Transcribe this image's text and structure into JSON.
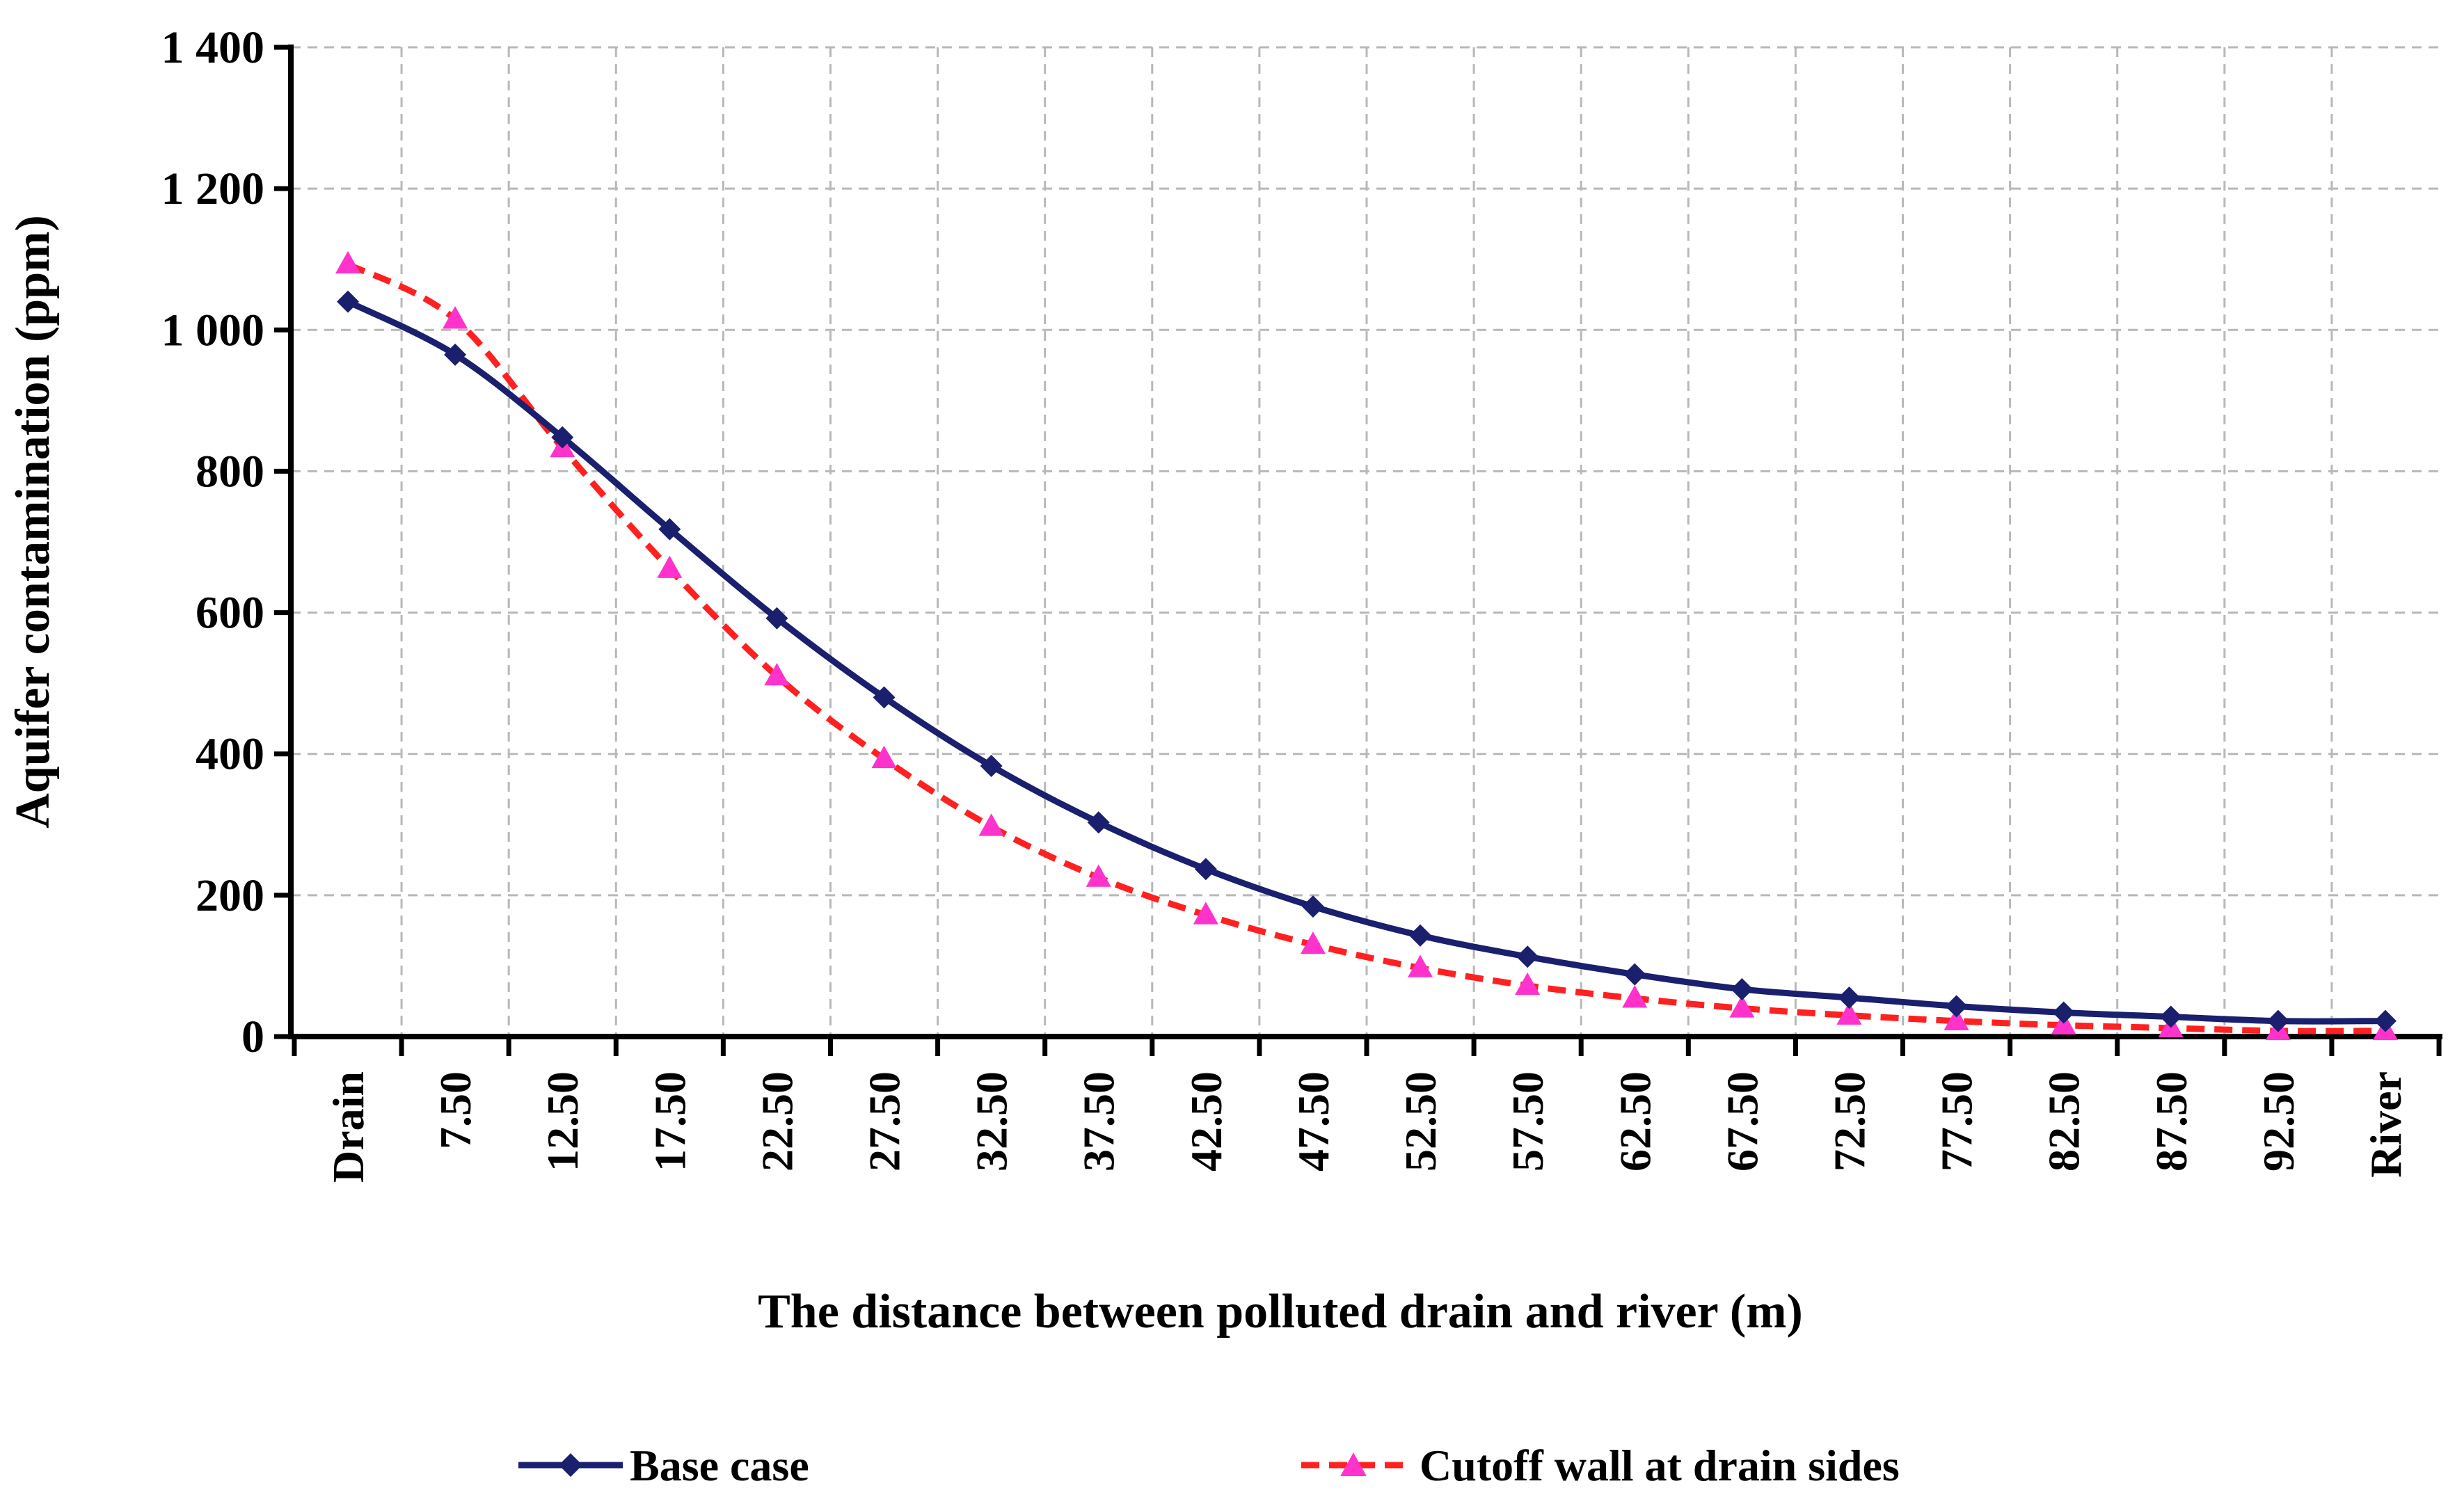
{
  "chart_data": {
    "type": "line",
    "title": "",
    "xlabel": "The distance between polluted  drain  and  river (m)",
    "ylabel": "Aquifer  contamination  (ppm)",
    "ylim": [
      0,
      1400
    ],
    "yticks": [
      0,
      200,
      400,
      600,
      800,
      1000,
      1200,
      1400
    ],
    "ytick_labels": [
      "0",
      "200",
      "400",
      "600",
      "800",
      "1 000",
      "1 200",
      "1 400"
    ],
    "categories": [
      "Drain",
      "7.50",
      "12.50",
      "17.50",
      "22.50",
      "27.50",
      "32.50",
      "37.50",
      "42.50",
      "47.50",
      "52.50",
      "57.50",
      "62.50",
      "67.50",
      "72.50",
      "77.50",
      "82.50",
      "87.50",
      "92.50",
      "River"
    ],
    "grid": true,
    "legend_position": "bottom",
    "series": [
      {
        "name": "Base case",
        "color": "#1a1f6e",
        "marker": "diamond",
        "line_style": "solid",
        "values": [
          1040,
          965,
          848,
          718,
          592,
          480,
          383,
          303,
          237,
          184,
          143,
          113,
          88,
          67,
          55,
          43,
          34,
          28,
          22,
          22
        ]
      },
      {
        "name": "Cutoff wall at drain sides",
        "color": "#ff2020",
        "marker_color": "#ff33cc",
        "marker": "triangle",
        "line_style": "dashed",
        "values": [
          1093,
          1015,
          833,
          662,
          510,
          393,
          297,
          225,
          172,
          130,
          97,
          72,
          54,
          40,
          30,
          22,
          16,
          12,
          8,
          8
        ]
      }
    ]
  }
}
